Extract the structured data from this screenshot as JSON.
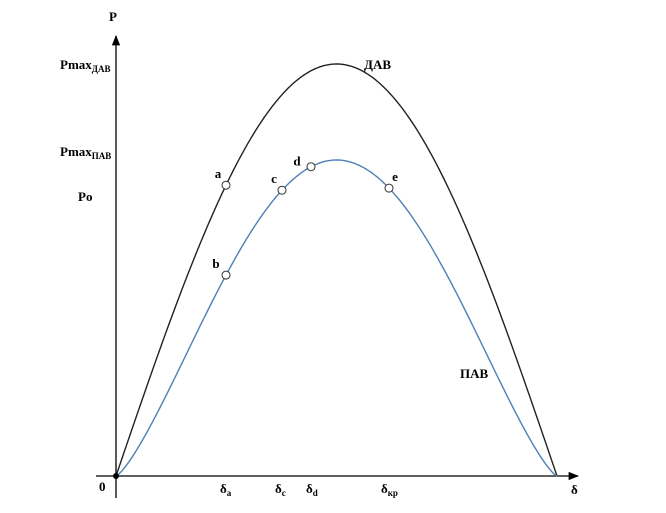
{
  "axes": {
    "y_label": "P",
    "x_label": "δ",
    "origin": "0"
  },
  "levels": [
    {
      "main": "Pmax",
      "sub": "ДАВ"
    },
    {
      "main": "Pmax",
      "sub": "ПАВ"
    },
    {
      "main": "Po"
    }
  ],
  "curves": [
    {
      "label": "ДАВ"
    },
    {
      "label": "ПАВ"
    }
  ],
  "points": [
    {
      "label": "a"
    },
    {
      "label": "b"
    },
    {
      "label": "c"
    },
    {
      "label": "d"
    },
    {
      "label": "e"
    }
  ],
  "angles": [
    {
      "main": "δ",
      "sub": "a"
    },
    {
      "main": "δ",
      "sub": "c"
    },
    {
      "main": "δ",
      "sub": "d"
    },
    {
      "main": "δ",
      "sub": "кр"
    }
  ]
}
